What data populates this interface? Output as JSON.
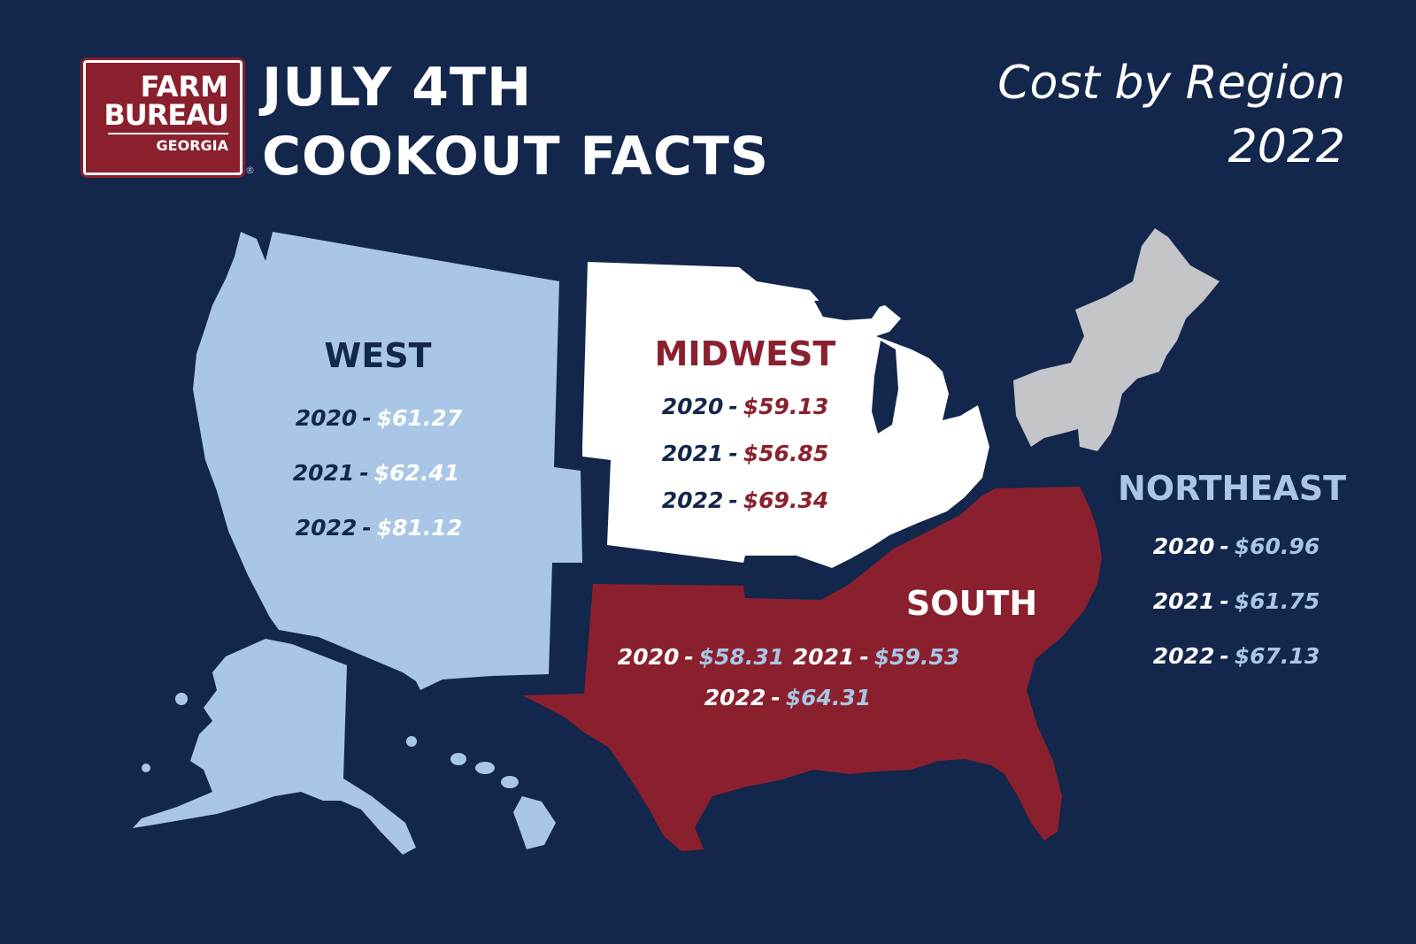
{
  "colors": {
    "background": "#13264b",
    "west": "#a9c6e6",
    "midwest": "#ffffff",
    "south": "#8a202e",
    "northeast": "#c3c5c9",
    "brand_red": "#8a202e"
  },
  "logo": {
    "line1": "FARM",
    "line2": "BUREAU",
    "line3": "GEORGIA",
    "registered": "®"
  },
  "header": {
    "title_line1": "JULY 4TH",
    "title_line2": "COOKOUT FACTS",
    "subtitle_line1": "Cost by Region",
    "subtitle_line2": "2022"
  },
  "regions": {
    "west": {
      "name": "WEST",
      "rows": [
        {
          "year": "2020",
          "price": "$61.27"
        },
        {
          "year": "2021",
          "price": "$62.41"
        },
        {
          "year": "2022",
          "price": "$81.12"
        }
      ]
    },
    "midwest": {
      "name": "MIDWEST",
      "rows": [
        {
          "year": "2020",
          "price": "$59.13"
        },
        {
          "year": "2021",
          "price": "$56.85"
        },
        {
          "year": "2022",
          "price": "$69.34"
        }
      ]
    },
    "south": {
      "name": "SOUTH",
      "rows": [
        {
          "year": "2020",
          "price": "$58.31"
        },
        {
          "year": "2021",
          "price": "$59.53"
        },
        {
          "year": "2022",
          "price": "$64.31"
        }
      ]
    },
    "northeast": {
      "name": "NORTHEAST",
      "rows": [
        {
          "year": "2020",
          "price": "$60.96"
        },
        {
          "year": "2021",
          "price": "$61.75"
        },
        {
          "year": "2022",
          "price": "$67.13"
        }
      ]
    }
  },
  "separator": "-"
}
